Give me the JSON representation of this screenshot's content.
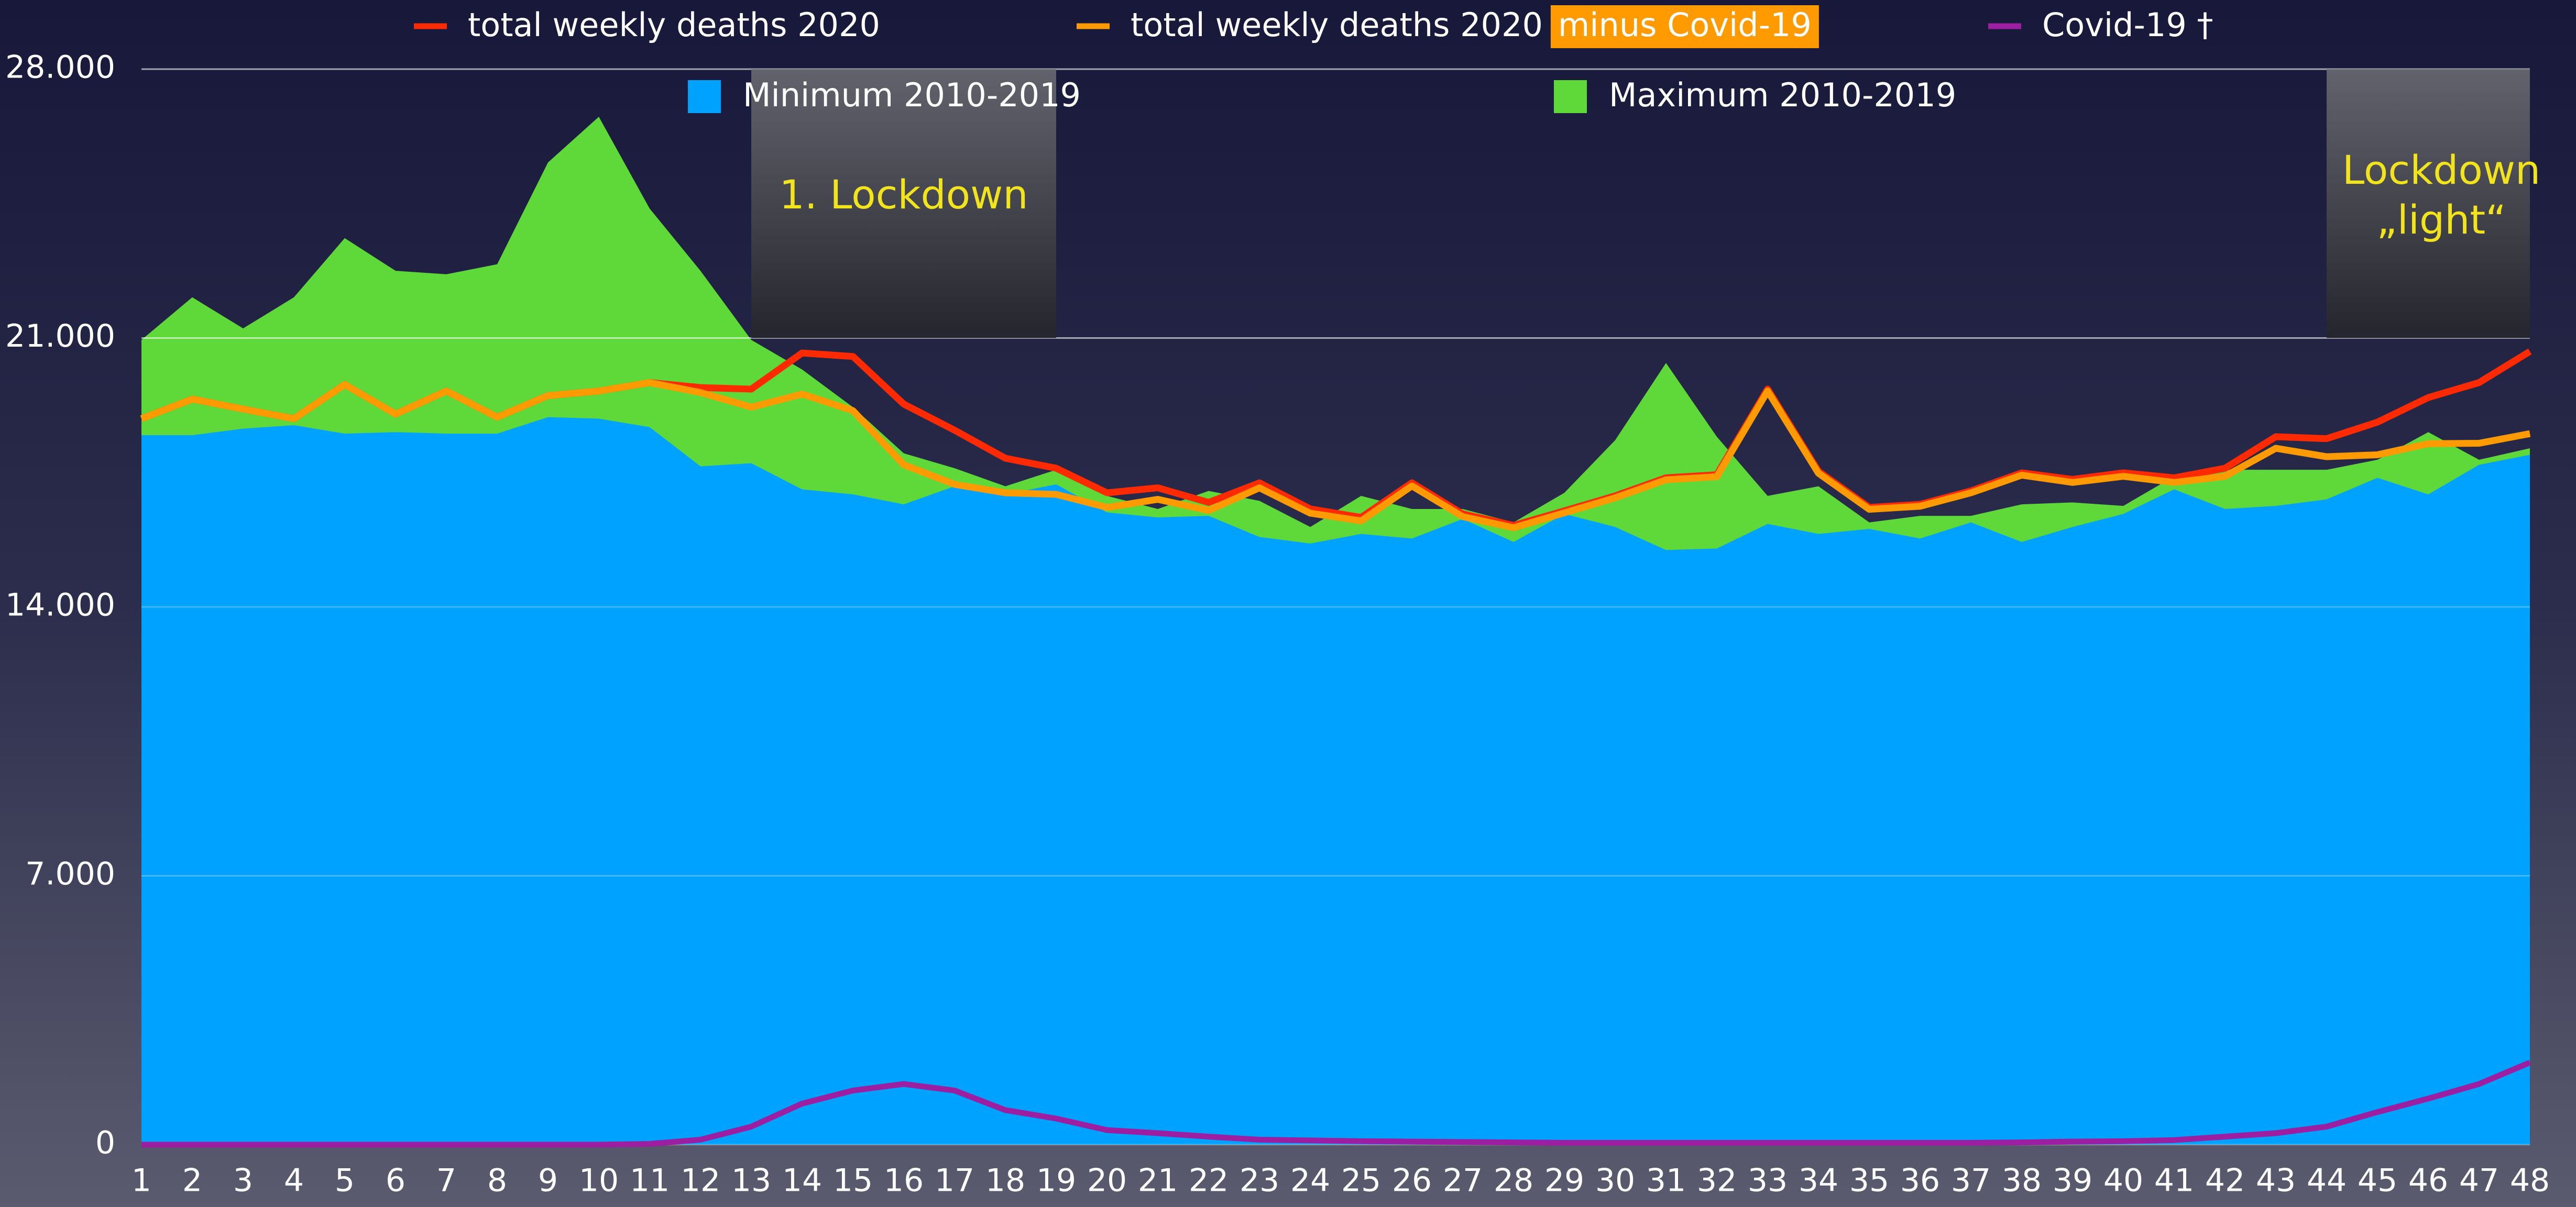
{
  "chart_data": {
    "type": "line",
    "categories": [
      "1",
      "2",
      "3",
      "4",
      "5",
      "6",
      "7",
      "8",
      "9",
      "10",
      "11",
      "12",
      "13",
      "14",
      "15",
      "16",
      "17",
      "18",
      "19",
      "20",
      "21",
      "22",
      "23",
      "24",
      "25",
      "26",
      "27",
      "28",
      "29",
      "30",
      "31",
      "32",
      "33",
      "34",
      "35",
      "36",
      "37",
      "38",
      "39",
      "40",
      "41",
      "42",
      "43",
      "44",
      "45",
      "46",
      "47",
      "48"
    ],
    "areas": [
      {
        "name": "Maximum 2010-2019",
        "color": "#5fd83a",
        "values": [
          20950,
          22060,
          21250,
          22060,
          23600,
          22750,
          22660,
          22920,
          25570,
          26760,
          24370,
          22750,
          20950,
          20180,
          19200,
          18000,
          17610,
          17140,
          17570,
          16890,
          16550,
          17020,
          16760,
          16080,
          16890,
          16550,
          16550,
          16200,
          16970,
          18340,
          20350,
          18430,
          16890,
          17140,
          16200,
          16370,
          16370,
          16670,
          16720,
          16630,
          17400,
          17570,
          17570,
          17570,
          17830,
          18550,
          17830,
          18130
        ]
      },
      {
        "name": "Minimum 2010-2019",
        "color": "#00a2ff",
        "values": [
          18470,
          18470,
          18640,
          18730,
          18510,
          18550,
          18510,
          18510,
          18940,
          18900,
          18680,
          17660,
          17740,
          17060,
          16930,
          16670,
          17140,
          16930,
          17190,
          16460,
          16330,
          16370,
          15820,
          15650,
          15900,
          15780,
          16290,
          15690,
          16420,
          16080,
          15480,
          15520,
          16160,
          15900,
          16030,
          15780,
          16200,
          15690,
          16080,
          16420,
          17060,
          16550,
          16630,
          16800,
          17360,
          16930,
          17700,
          17960
        ]
      }
    ],
    "series": [
      {
        "name": "total weekly deaths 2020",
        "color": "#ff2a00",
        "values": [
          18900,
          19410,
          19150,
          18900,
          19790,
          19020,
          19620,
          18940,
          19500,
          19620,
          19840,
          19710,
          19670,
          20610,
          20520,
          19280,
          18600,
          17870,
          17610,
          16970,
          17100,
          16720,
          17230,
          16550,
          16330,
          17230,
          16420,
          16120,
          16500,
          16890,
          17360,
          17440,
          19670,
          17530,
          16590,
          16670,
          17020,
          17490,
          17320,
          17490,
          17360,
          17610,
          18430,
          18380,
          18810,
          19450,
          19840,
          20650
        ]
      },
      {
        "name": "total weekly deaths 2020",
        "name_highlight": "minus Covid-19",
        "color": "#ff9a00",
        "values": [
          18900,
          19410,
          19150,
          18900,
          19790,
          19020,
          19620,
          18940,
          19500,
          19620,
          19840,
          19580,
          19200,
          19540,
          19110,
          17700,
          17190,
          16970,
          16930,
          16590,
          16800,
          16510,
          17100,
          16440,
          16240,
          17150,
          16350,
          16060,
          16450,
          16840,
          17310,
          17390,
          19620,
          17480,
          16540,
          16620,
          16970,
          17430,
          17240,
          17400,
          17240,
          17400,
          18130,
          17910,
          17960,
          18250,
          18260,
          18510
        ]
      },
      {
        "name": "Covid-19 †",
        "color": "#9b1fa0",
        "values": [
          0,
          0,
          0,
          0,
          0,
          0,
          0,
          0,
          0,
          0,
          20,
          130,
          470,
          1070,
          1410,
          1580,
          1410,
          900,
          680,
          380,
          300,
          210,
          130,
          110,
          90,
          80,
          70,
          60,
          50,
          50,
          50,
          50,
          50,
          50,
          50,
          50,
          50,
          60,
          80,
          90,
          120,
          210,
          300,
          470,
          850,
          1200,
          1580,
          2140
        ]
      }
    ],
    "regions": [
      {
        "label": [
          "1. Lockdown"
        ],
        "x": [
          "13",
          "19"
        ]
      },
      {
        "label": [
          "Lockdown",
          "„light“"
        ],
        "x": [
          "44",
          "48"
        ]
      }
    ],
    "ylim": [
      0,
      28000
    ],
    "yticks": [
      0,
      {
        "value": 7000,
        "label": "7.000"
      },
      {
        "value": 14000,
        "label": "14.000"
      },
      {
        "value": 21000,
        "label": "21.000"
      },
      {
        "value": 28000,
        "label": "28.000"
      }
    ],
    "grid": true
  }
}
